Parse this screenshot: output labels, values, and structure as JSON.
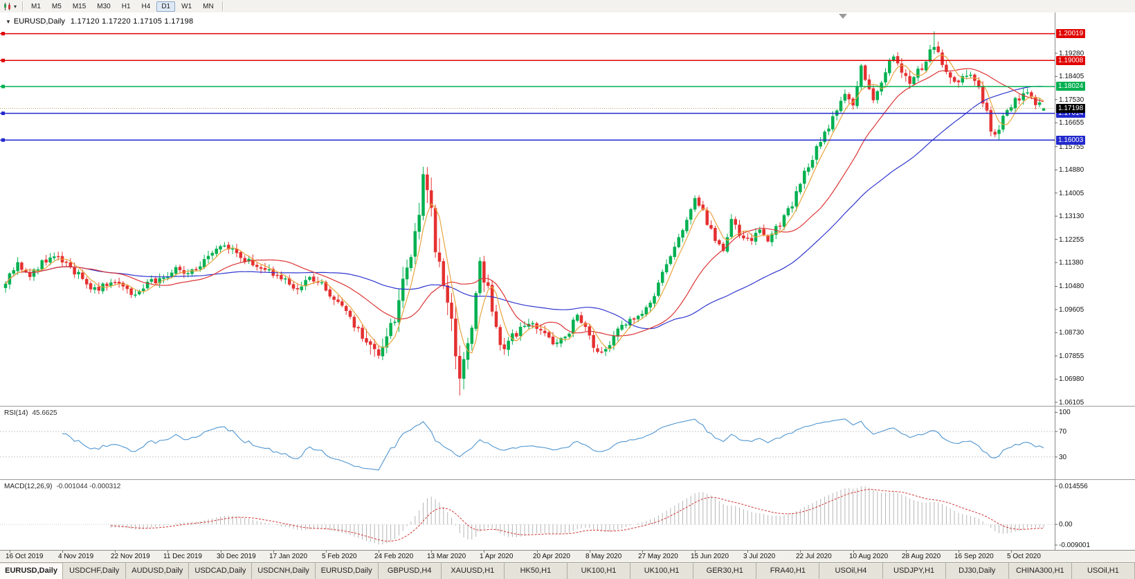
{
  "toolbar": {
    "timeframes": [
      "M1",
      "M5",
      "M15",
      "M30",
      "H1",
      "H4",
      "D1",
      "W1",
      "MN"
    ],
    "active_timeframe": "D1",
    "chart_type_icon": "candlestick-chart-icon",
    "dropdown_icon": "dropdown-caret-icon"
  },
  "chart_header": {
    "symbol_period": "EURUSD,Daily",
    "ohlc_text": "1.17120 1.17220 1.17105 1.17198"
  },
  "indicators": {
    "rsi": {
      "name": "RSI(14)",
      "value": "45.6625",
      "levels": [
        100,
        70,
        30
      ],
      "axis_labels": [
        "100",
        "70",
        "30"
      ],
      "color": "#4f95d0"
    },
    "macd": {
      "name": "MACD(12,26,9)",
      "values": "-0.001044 -0.000312",
      "axis_labels": [
        "0.014556",
        "0.00",
        "-0.009001"
      ],
      "histogram_color": "#b5b5b5",
      "signal_color": "#d23333"
    }
  },
  "colors": {
    "up_candle": "#00b050",
    "down_candle": "#e53030",
    "panel_divider": "#9a9a9a",
    "axis_border": "#8a8a8a",
    "bid_line": "#b8a060",
    "shift_marker": "#999999"
  },
  "chart_data": {
    "type": "candlestick",
    "symbol": "EURUSD",
    "period": "Daily",
    "n_candles": 257,
    "y_range": [
      1.0597,
      1.2082
    ],
    "y_tick_labels": [
      "1.19280",
      "1.18405",
      "1.17530",
      "1.16655",
      "1.15755",
      "1.14880",
      "1.14005",
      "1.13130",
      "1.12255",
      "1.11380",
      "1.10480",
      "1.09605",
      "1.08730",
      "1.07855",
      "1.06980",
      "1.06105"
    ],
    "x_tick_labels": [
      "16 Oct 2019",
      "4 Nov 2019",
      "22 Nov 2019",
      "11 Dec 2019",
      "30 Dec 2019",
      "17 Jan 2020",
      "5 Feb 2020",
      "24 Feb 2020",
      "13 Mar 2020",
      "1 Apr 2020",
      "20 Apr 2020",
      "8 May 2020",
      "27 May 2020",
      "15 Jun 2020",
      "3 Jul 2020",
      "22 Jul 2020",
      "10 Aug 2020",
      "28 Aug 2020",
      "16 Sep 2020",
      "5 Oct 2020"
    ],
    "x_first_tick_index": 1,
    "x_tick_step": 13,
    "current_candle": {
      "open": 1.1712,
      "high": 1.1722,
      "low": 1.17105,
      "close": 1.17198
    },
    "current_price": {
      "value": 1.17198,
      "label": "1.17198",
      "box_color": "#000000"
    },
    "horizontal_lines": [
      {
        "price": 1.20019,
        "label": "1.20019",
        "color": "#e00000"
      },
      {
        "price": 1.19008,
        "label": "1.19008",
        "color": "#e00000"
      },
      {
        "price": 1.18024,
        "label": "1.18024",
        "color": "#00b050"
      },
      {
        "price": 1.17014,
        "label": "1.17014",
        "color": "#2228cc"
      },
      {
        "price": 1.16003,
        "label": "1.16003",
        "color": "#2228cc"
      }
    ],
    "moving_averages": [
      {
        "period": 50,
        "color": "#2e35cf"
      },
      {
        "period": 21,
        "color": "#dd3434"
      },
      {
        "period": 5,
        "color": "#e8a33d"
      }
    ],
    "price_path_anchors": [
      [
        0,
        1.1065
      ],
      [
        3,
        1.1135
      ],
      [
        6,
        1.109
      ],
      [
        10,
        1.115
      ],
      [
        13,
        1.1165
      ],
      [
        16,
        1.112
      ],
      [
        19,
        1.1075
      ],
      [
        22,
        1.1035
      ],
      [
        26,
        1.107
      ],
      [
        29,
        1.104
      ],
      [
        32,
        1.1015
      ],
      [
        35,
        1.106
      ],
      [
        38,
        1.1075
      ],
      [
        42,
        1.1115
      ],
      [
        45,
        1.109
      ],
      [
        48,
        1.112
      ],
      [
        51,
        1.1175
      ],
      [
        54,
        1.121
      ],
      [
        57,
        1.117
      ],
      [
        60,
        1.114
      ],
      [
        63,
        1.112
      ],
      [
        66,
        1.1095
      ],
      [
        69,
        1.1075
      ],
      [
        72,
        1.103
      ],
      [
        75,
        1.1075
      ],
      [
        78,
        1.1055
      ],
      [
        81,
        1.1
      ],
      [
        84,
        1.0945
      ],
      [
        88,
        1.086
      ],
      [
        91,
        1.079
      ],
      [
        94,
        1.0845
      ],
      [
        96,
        1.094
      ],
      [
        98,
        1.106
      ],
      [
        100,
        1.1135
      ],
      [
        102,
        1.133
      ],
      [
        103,
        1.145
      ],
      [
        105,
        1.136
      ],
      [
        106,
        1.119
      ],
      [
        108,
        1.106
      ],
      [
        110,
        1.092
      ],
      [
        112,
        1.07
      ],
      [
        113,
        1.076
      ],
      [
        115,
        1.088
      ],
      [
        117,
        1.113
      ],
      [
        119,
        1.103
      ],
      [
        121,
        1.088
      ],
      [
        123,
        1.08
      ],
      [
        125,
        1.0855
      ],
      [
        128,
        1.09
      ],
      [
        130,
        1.091
      ],
      [
        133,
        1.0865
      ],
      [
        136,
        1.083
      ],
      [
        139,
        1.088
      ],
      [
        141,
        1.0945
      ],
      [
        144,
        1.0855
      ],
      [
        146,
        1.079
      ],
      [
        149,
        1.083
      ],
      [
        152,
        1.09
      ],
      [
        155,
        1.0925
      ],
      [
        157,
        1.0955
      ],
      [
        159,
        1.0985
      ],
      [
        161,
        1.106
      ],
      [
        163,
        1.1135
      ],
      [
        166,
        1.124
      ],
      [
        168,
        1.13
      ],
      [
        170,
        1.1385
      ],
      [
        172,
        1.133
      ],
      [
        174,
        1.1255
      ],
      [
        177,
        1.1185
      ],
      [
        179,
        1.13
      ],
      [
        181,
        1.1245
      ],
      [
        184,
        1.121
      ],
      [
        186,
        1.1265
      ],
      [
        188,
        1.123
      ],
      [
        190,
        1.127
      ],
      [
        192,
        1.1305
      ],
      [
        194,
        1.136
      ],
      [
        196,
        1.144
      ],
      [
        198,
        1.1505
      ],
      [
        200,
        1.1565
      ],
      [
        202,
        1.162
      ],
      [
        204,
        1.168
      ],
      [
        206,
        1.1745
      ],
      [
        207,
        1.1775
      ],
      [
        209,
        1.173
      ],
      [
        211,
        1.187
      ],
      [
        213,
        1.179
      ],
      [
        214,
        1.1745
      ],
      [
        216,
        1.181
      ],
      [
        218,
        1.1905
      ],
      [
        219,
        1.1925
      ],
      [
        221,
        1.1845
      ],
      [
        223,
        1.1815
      ],
      [
        225,
        1.1855
      ],
      [
        227,
        1.1905
      ],
      [
        229,
        1.1965
      ],
      [
        230,
        1.1935
      ],
      [
        232,
        1.1855
      ],
      [
        234,
        1.1815
      ],
      [
        236,
        1.183
      ],
      [
        238,
        1.1855
      ],
      [
        240,
        1.18
      ],
      [
        242,
        1.17
      ],
      [
        243,
        1.1645
      ],
      [
        244,
        1.1615
      ],
      [
        246,
        1.168
      ],
      [
        248,
        1.173
      ],
      [
        250,
        1.1762
      ],
      [
        252,
        1.1788
      ],
      [
        254,
        1.1742
      ],
      [
        256,
        1.172
      ]
    ],
    "volatility_bumps": [
      {
        "center": 106,
        "width": 14,
        "amp": 1.8
      },
      {
        "center": 91,
        "width": 5,
        "amp": 0.5
      },
      {
        "center": 229,
        "width": 18,
        "amp": 0.25
      }
    ],
    "wick_overrides": [
      {
        "i": 103,
        "high": 1.1495
      },
      {
        "i": 112,
        "low": 1.0636
      },
      {
        "i": 229,
        "high": 1.2011
      },
      {
        "i": 244,
        "low": 1.1612
      }
    ]
  },
  "tabs": [
    {
      "label": "EURUSD,Daily",
      "active": true
    },
    {
      "label": "USDCHF,Daily",
      "active": false
    },
    {
      "label": "AUDUSD,Daily",
      "active": false
    },
    {
      "label": "USDCAD,Daily",
      "active": false
    },
    {
      "label": "USDCNH,Daily",
      "active": false
    },
    {
      "label": "EURUSD,Daily",
      "active": false
    },
    {
      "label": "GBPUSD,H4",
      "active": false
    },
    {
      "label": "XAUUSD,H1",
      "active": false
    },
    {
      "label": "HK50,H1",
      "active": false
    },
    {
      "label": "UK100,H1",
      "active": false
    },
    {
      "label": "UK100,H1",
      "active": false
    },
    {
      "label": "GER30,H1",
      "active": false
    },
    {
      "label": "FRA40,H1",
      "active": false
    },
    {
      "label": "USOil,H4",
      "active": false
    },
    {
      "label": "USDJPY,H1",
      "active": false
    },
    {
      "label": "DJ30,Daily",
      "active": false
    },
    {
      "label": "CHINA300,H1",
      "active": false
    },
    {
      "label": "USOil,H1",
      "active": false
    }
  ]
}
